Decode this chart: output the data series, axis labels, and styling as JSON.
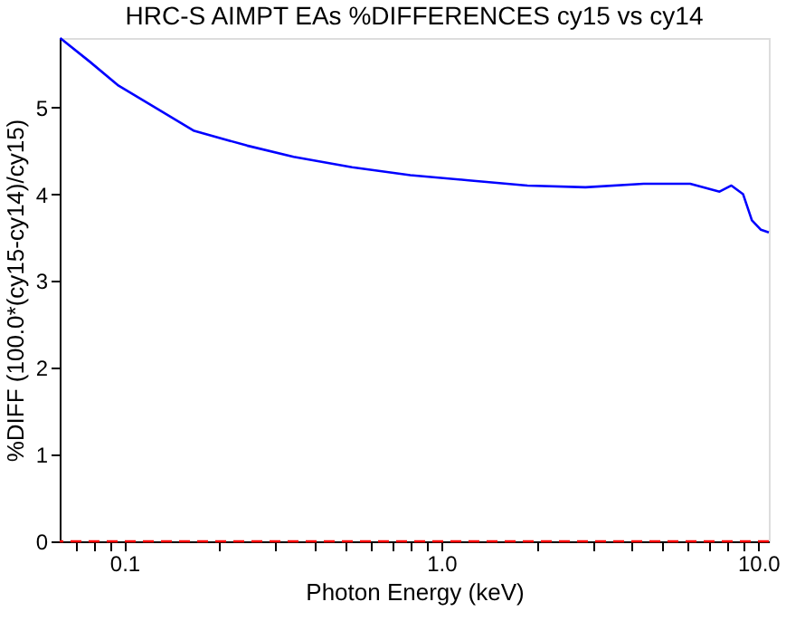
{
  "chart_data": {
    "type": "line",
    "title": "HRC-S AIMPT EAs %DIFFERENCES cy15 vs cy14",
    "xlabel": "Photon Energy (keV)",
    "ylabel": "%DIFF (100.0*(cy15-cy14)/cy15)",
    "log": "x",
    "xlim": [
      0.0625,
      10.8
    ],
    "ylim": [
      0,
      5.8
    ],
    "xticks": [
      {
        "value": 0.07,
        "label": null
      },
      {
        "value": 0.08,
        "label": null
      },
      {
        "value": 0.09,
        "label": null
      },
      0.1,
      {
        "value": 0.2,
        "label": null
      },
      {
        "value": 0.3,
        "label": null
      },
      {
        "value": 0.4,
        "label": null
      },
      {
        "value": 0.5,
        "label": null
      },
      {
        "value": 0.6,
        "label": null
      },
      {
        "value": 0.7,
        "label": null
      },
      {
        "value": 0.8,
        "label": null
      },
      {
        "value": 0.9,
        "label": null
      },
      {
        "value": 1,
        "label": "1.0"
      },
      {
        "value": 2,
        "label": null
      },
      {
        "value": 3,
        "label": null
      },
      {
        "value": 4,
        "label": null
      },
      {
        "value": 5,
        "label": null
      },
      {
        "value": 6,
        "label": null
      },
      {
        "value": 7,
        "label": null
      },
      {
        "value": 8,
        "label": null
      },
      {
        "value": 9,
        "label": null
      },
      {
        "value": 10,
        "label": "10.0"
      }
    ],
    "yticks": [
      0,
      1,
      2,
      3,
      4,
      5
    ],
    "grid": false,
    "series": [
      {
        "color": "#0000ff",
        "x": [
          0.0627,
          0.0776,
          0.0959,
          0.1185,
          0.166,
          0.244,
          0.342,
          0.523,
          0.798,
          1.22,
          1.87,
          2.85,
          4.35,
          6.1,
          7.55,
          8.23,
          8.96,
          9.55,
          10.2,
          10.8
        ],
        "values": [
          5.8,
          5.53,
          5.25,
          5.05,
          4.73,
          4.56,
          4.43,
          4.31,
          4.22,
          4.16,
          4.1,
          4.08,
          4.12,
          4.12,
          4.03,
          4.1,
          4.0,
          3.7,
          3.59,
          3.56
        ]
      }
    ],
    "ref_lines": [
      {
        "axis": "y",
        "value": 0,
        "color": "#ff0000",
        "line_style": "dashed"
      }
    ]
  }
}
